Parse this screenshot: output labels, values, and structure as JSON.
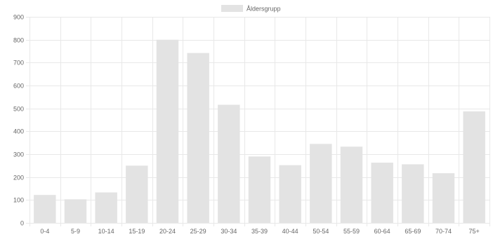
{
  "chart_data": {
    "type": "bar",
    "title": "",
    "xlabel": "",
    "ylabel": "",
    "categories": [
      "0-4",
      "5-9",
      "10-14",
      "15-19",
      "20-24",
      "25-29",
      "30-34",
      "35-39",
      "40-44",
      "50-54",
      "55-59",
      "60-64",
      "65-69",
      "70-74",
      "75+"
    ],
    "series": [
      {
        "name": "Åldersgrupp",
        "values": [
          122,
          103,
          133,
          250,
          800,
          742,
          516,
          290,
          252,
          345,
          333,
          263,
          256,
          217,
          487
        ],
        "color": "#e3e3e3"
      }
    ],
    "ylim": [
      0,
      900
    ],
    "yticks": [
      0,
      100,
      200,
      300,
      400,
      500,
      600,
      700,
      800,
      900
    ],
    "grid": true,
    "legend_position": "top-center",
    "gridline_color": "#e8e8e8",
    "tick_color": "#666666"
  }
}
